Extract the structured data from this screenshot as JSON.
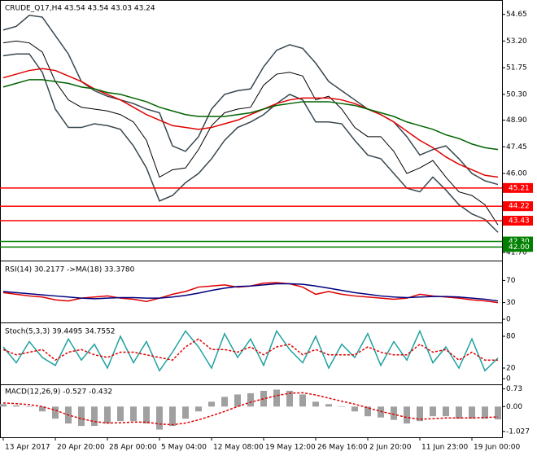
{
  "chart_data": [
    {
      "type": "line",
      "title": "CRUDE_Q17,H4  43.54 43.54 43.03 43.24",
      "categories": [
        "13 Apr 2017",
        null,
        null,
        null,
        "20 Apr 20:00",
        null,
        null,
        null,
        "28 Apr 00:00",
        null,
        null,
        null,
        "5 May 04:00",
        null,
        null,
        null,
        "12 May 08:00",
        null,
        null,
        null,
        "19 May 12:00",
        null,
        null,
        null,
        "26 May 16:00",
        null,
        null,
        null,
        "2 Jun 20:00",
        null,
        null,
        null,
        "11 Jun 23:00",
        null,
        null,
        null,
        "19 Jun 00:00",
        null,
        null
      ],
      "ylim": [
        41.35,
        55.3
      ],
      "yticks": [
        54.65,
        {
          "value": 53.2,
          "label": "53.20"
        },
        51.75,
        {
          "value": 50.3,
          "label": "50.30"
        },
        {
          "value": 48.9,
          "label": "48.90"
        },
        47.45,
        {
          "value": 46,
          "label": "46.00"
        },
        {
          "value": 41.7,
          "label": "41.70"
        }
      ],
      "grid": false,
      "series": [
        {
          "name": "Close",
          "color": "#000000",
          "values": [
            53.1,
            53.2,
            53.1,
            52.6,
            51.0,
            50.0,
            49.6,
            49.5,
            49.4,
            49.2,
            48.8,
            47.8,
            45.8,
            46.2,
            46.3,
            47.3,
            48.6,
            49.3,
            49.5,
            49.6,
            50.8,
            51.4,
            51.5,
            51.3,
            50.0,
            50.2,
            49.5,
            48.5,
            48.0,
            48.0,
            47.2,
            46.0,
            46.3,
            46.7,
            45.8,
            45.0,
            44.8,
            44.3,
            43.2
          ]
        },
        {
          "name": "BB Upper",
          "color": "#37474f",
          "values": [
            53.8,
            54.0,
            54.6,
            54.5,
            53.5,
            52.5,
            51.0,
            50.5,
            50.2,
            50.0,
            49.8,
            49.5,
            49.3,
            47.5,
            47.2,
            48.0,
            49.5,
            50.3,
            50.5,
            50.6,
            51.8,
            52.7,
            53.0,
            52.8,
            52.0,
            51.0,
            50.5,
            50.0,
            49.5,
            49.2,
            48.8,
            48.0,
            47.0,
            47.3,
            47.5,
            46.8,
            46.0,
            45.6,
            45.4
          ]
        },
        {
          "name": "BB Lower",
          "color": "#37474f",
          "values": [
            52.4,
            52.5,
            52.5,
            51.5,
            49.5,
            48.5,
            48.5,
            48.7,
            48.6,
            48.4,
            47.5,
            46.3,
            44.5,
            44.8,
            45.5,
            46.0,
            46.8,
            47.8,
            48.5,
            48.8,
            49.2,
            49.8,
            50.3,
            50.0,
            48.8,
            48.8,
            48.7,
            47.8,
            47.0,
            46.8,
            46.0,
            45.2,
            45.0,
            45.8,
            45.1,
            44.3,
            43.8,
            43.5,
            42.8
          ]
        },
        {
          "name": "MA Red",
          "color": "#e00000",
          "values": [
            51.2,
            51.4,
            51.6,
            51.7,
            51.6,
            51.3,
            51.0,
            50.6,
            50.3,
            50.0,
            49.6,
            49.2,
            48.9,
            48.6,
            48.5,
            48.4,
            48.5,
            48.7,
            48.9,
            49.2,
            49.5,
            49.8,
            50.0,
            50.1,
            50.1,
            50.1,
            50.0,
            49.8,
            49.5,
            49.2,
            48.8,
            48.3,
            47.8,
            47.4,
            46.9,
            46.5,
            46.2,
            45.9,
            45.8
          ]
        },
        {
          "name": "MA Green",
          "color": "#006400",
          "values": [
            50.7,
            50.9,
            51.1,
            51.1,
            51.0,
            50.9,
            50.7,
            50.6,
            50.4,
            50.3,
            50.1,
            49.9,
            49.6,
            49.4,
            49.2,
            49.1,
            49.1,
            49.1,
            49.2,
            49.3,
            49.5,
            49.7,
            49.8,
            49.9,
            49.9,
            49.9,
            49.8,
            49.7,
            49.5,
            49.3,
            49.1,
            48.8,
            48.6,
            48.4,
            48.1,
            47.9,
            47.6,
            47.4,
            47.3
          ]
        }
      ],
      "levels": [
        {
          "value": 45.21,
          "label": "45.21",
          "color": "#ff0000"
        },
        {
          "value": 44.22,
          "label": "44.22",
          "color": "#ff0000"
        },
        {
          "value": 43.43,
          "label": "43.43",
          "color": "#ff0000"
        },
        {
          "value": 42.3,
          "label": "42.30",
          "color": "#008000"
        },
        {
          "value": 42,
          "label": "42.00",
          "color": "#008000"
        }
      ]
    },
    {
      "type": "line",
      "title": "RSI(14) 30.2177  ->MA(18) 33.3780",
      "ylim": [
        0,
        100
      ],
      "yticks": [
        70,
        30,
        0
      ],
      "grid": false,
      "series": [
        {
          "name": "RSI",
          "color": "#e00000",
          "values": [
            48,
            45,
            42,
            40,
            35,
            33,
            38,
            40,
            42,
            38,
            36,
            32,
            38,
            45,
            50,
            58,
            60,
            62,
            58,
            60,
            65,
            66,
            64,
            58,
            45,
            50,
            45,
            42,
            40,
            38,
            36,
            38,
            45,
            42,
            40,
            38,
            35,
            33,
            30
          ]
        },
        {
          "name": "MA",
          "color": "#000080",
          "values": [
            50,
            48,
            46,
            44,
            42,
            40,
            38,
            37,
            38,
            39,
            39,
            38,
            38,
            40,
            43,
            47,
            52,
            56,
            59,
            60,
            62,
            64,
            64,
            63,
            60,
            56,
            52,
            48,
            45,
            42,
            40,
            39,
            40,
            41,
            41,
            40,
            38,
            36,
            33
          ]
        }
      ]
    },
    {
      "type": "line",
      "title": "Stoch(5,3,3) 39.4495 34.7552",
      "ylim": [
        0,
        100
      ],
      "yticks": [
        80,
        20,
        0
      ],
      "grid": false,
      "series": [
        {
          "name": "Main",
          "color": "#20a0a0",
          "values": [
            60,
            30,
            70,
            40,
            25,
            75,
            35,
            65,
            20,
            80,
            30,
            70,
            15,
            50,
            90,
            60,
            20,
            85,
            40,
            75,
            25,
            90,
            55,
            30,
            80,
            20,
            65,
            40,
            85,
            25,
            70,
            35,
            90,
            30,
            60,
            20,
            75,
            15,
            39
          ]
        },
        {
          "name": "Signal",
          "color": "#e00000",
          "dash": true,
          "values": [
            55,
            45,
            50,
            55,
            35,
            50,
            55,
            45,
            40,
            50,
            50,
            45,
            40,
            35,
            60,
            75,
            55,
            55,
            50,
            60,
            45,
            60,
            65,
            45,
            55,
            45,
            45,
            45,
            60,
            50,
            45,
            45,
            65,
            50,
            55,
            35,
            50,
            35,
            35
          ]
        }
      ]
    },
    {
      "type": "combo",
      "title": "MACD(12,26,9) -0.527 -0.432",
      "ylim": [
        -1.2,
        0.85
      ],
      "yticks": [
        0.73,
        {
          "value": 0,
          "label": "0.00"
        },
        -1.027
      ],
      "grid": false,
      "series": [
        {
          "name": "MACD",
          "color": "#a0a0a0",
          "style": "bar",
          "values": [
            0.1,
            0.05,
            0,
            -0.2,
            -0.5,
            -0.7,
            -0.8,
            -0.8,
            -0.7,
            -0.6,
            -0.6,
            -0.7,
            -0.95,
            -0.8,
            -0.5,
            -0.2,
            0.2,
            0.4,
            0.5,
            0.55,
            0.65,
            0.7,
            0.65,
            0.5,
            0.2,
            0.1,
            0,
            -0.2,
            -0.4,
            -0.45,
            -0.55,
            -0.7,
            -0.6,
            -0.4,
            -0.4,
            -0.5,
            -0.5,
            -0.5,
            -0.53
          ]
        },
        {
          "name": "Signal",
          "color": "#e00000",
          "style": "line",
          "dash": true,
          "values": [
            0.15,
            0.12,
            0.08,
            0,
            -0.15,
            -0.35,
            -0.5,
            -0.62,
            -0.68,
            -0.67,
            -0.64,
            -0.64,
            -0.72,
            -0.75,
            -0.68,
            -0.55,
            -0.38,
            -0.2,
            0,
            0.18,
            0.32,
            0.45,
            0.55,
            0.57,
            0.48,
            0.35,
            0.22,
            0.1,
            -0.05,
            -0.2,
            -0.32,
            -0.45,
            -0.52,
            -0.5,
            -0.47,
            -0.47,
            -0.47,
            -0.45,
            -0.43
          ]
        }
      ]
    }
  ]
}
